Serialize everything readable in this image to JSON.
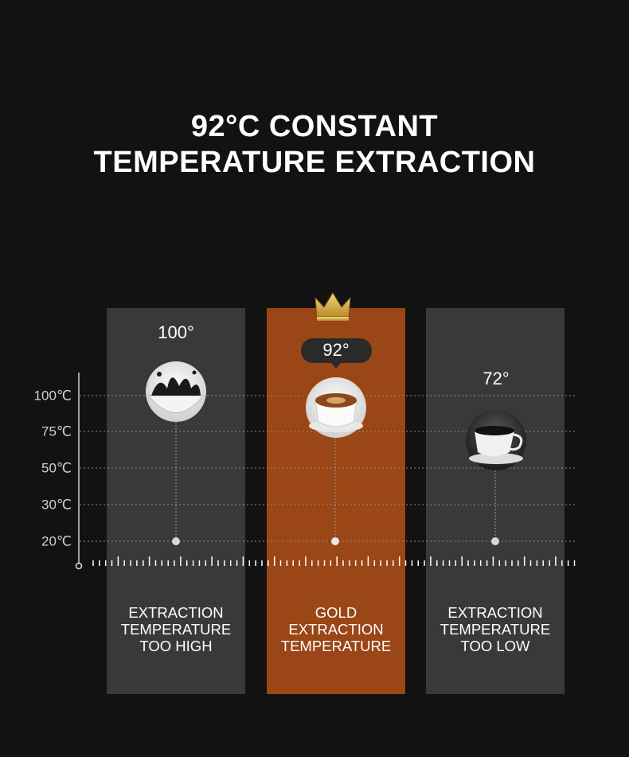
{
  "header": {
    "title_lines": [
      "92°C CONSTANT",
      "TEMPERATURE EXTRACTION"
    ]
  },
  "scale": {
    "labels": [
      "100℃",
      "75℃",
      "50℃",
      "30℃",
      "20℃"
    ]
  },
  "columns": [
    {
      "temperature": "100°",
      "caption_lines": [
        "EXTRACTION",
        "TEMPERATURE",
        "TOO HIGH"
      ]
    },
    {
      "temperature": "92°",
      "caption_lines": [
        "GOLD",
        "EXTRACTION",
        "TEMPERATURE"
      ]
    },
    {
      "temperature": "72°",
      "caption_lines": [
        "EXTRACTION",
        "TEMPERATURE",
        "TOO LOW"
      ]
    }
  ]
}
